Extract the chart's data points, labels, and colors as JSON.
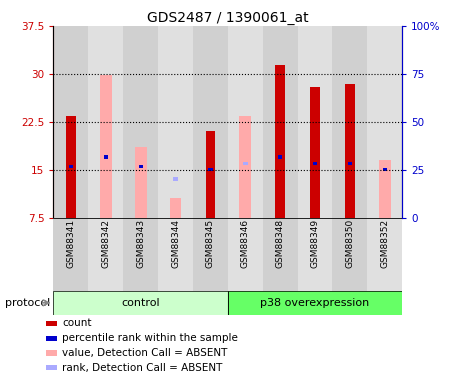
{
  "title": "GDS2487 / 1390061_at",
  "samples": [
    "GSM88341",
    "GSM88342",
    "GSM88343",
    "GSM88344",
    "GSM88345",
    "GSM88346",
    "GSM88348",
    "GSM88349",
    "GSM88350",
    "GSM88352"
  ],
  "red_bars": [
    23.5,
    null,
    null,
    null,
    21.0,
    null,
    31.5,
    28.0,
    28.5,
    null
  ],
  "pink_bars": [
    null,
    29.8,
    18.5,
    10.5,
    null,
    23.5,
    null,
    null,
    null,
    16.5
  ],
  "blue_bars": [
    15.5,
    17.0,
    15.5,
    null,
    15.0,
    16.0,
    17.0,
    16.0,
    16.0,
    15.0
  ],
  "light_blue_bars": [
    null,
    null,
    null,
    13.5,
    null,
    16.0,
    null,
    null,
    null,
    null
  ],
  "ylim_left": [
    7.5,
    37.5
  ],
  "ylim_right": [
    0,
    100
  ],
  "yticks_left": [
    7.5,
    15.0,
    22.5,
    30.0,
    37.5
  ],
  "yticks_right": [
    0,
    25,
    50,
    75,
    100
  ],
  "ytick_labels_left": [
    "7.5",
    "15",
    "22.5",
    "30",
    "37.5"
  ],
  "ytick_labels_right": [
    "0",
    "25",
    "50",
    "75",
    "100%"
  ],
  "hlines": [
    15.0,
    22.5,
    30.0
  ],
  "red_color": "#cc0000",
  "pink_color": "#ffaaaa",
  "blue_color": "#0000cc",
  "light_blue_color": "#aaaaff",
  "title_fontsize": 10,
  "tick_fontsize": 7.5,
  "label_fontsize": 8,
  "legend_fontsize": 7.5,
  "col_colors": [
    "#d0d0d0",
    "#e0e0e0"
  ],
  "group_color_control": "#ccffcc",
  "group_color_p38": "#66ff66",
  "control_label": "control",
  "p38_label": "p38 overexpression",
  "protocol_label": "protocol",
  "legend_items": [
    {
      "color": "#cc0000",
      "label": "count"
    },
    {
      "color": "#0000cc",
      "label": "percentile rank within the sample"
    },
    {
      "color": "#ffaaaa",
      "label": "value, Detection Call = ABSENT"
    },
    {
      "color": "#aaaaff",
      "label": "rank, Detection Call = ABSENT"
    }
  ]
}
